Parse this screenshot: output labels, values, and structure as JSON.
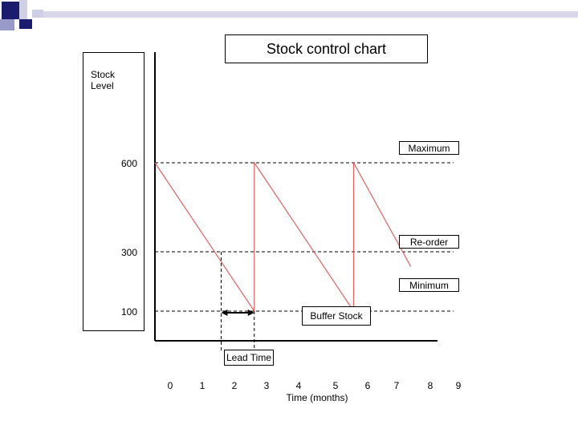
{
  "title": "Stock control chart",
  "colors": {
    "decoration": "#1c1c6e",
    "series": "#e06060",
    "axis": "#000000"
  },
  "chart_data": {
    "type": "line",
    "title": "Stock control chart",
    "xlabel": "Time (months)",
    "ylabel": "Stock Level",
    "xlim": [
      0,
      9
    ],
    "ylim": [
      0,
      600
    ],
    "x_ticks": [
      "0",
      "1",
      "2",
      "3",
      "4",
      "5",
      "6",
      "7",
      "8",
      "9"
    ],
    "y_ticks": [
      "600",
      "300",
      "100"
    ],
    "reference_lines": [
      {
        "label": "Maximum",
        "y": 600
      },
      {
        "label": "Re-order",
        "y": 300
      },
      {
        "label": "Minimum",
        "y": 100
      }
    ],
    "series": [
      {
        "x": [
          0,
          3.3,
          3.3,
          6.6,
          6.6,
          8.5
        ],
        "y": [
          600,
          100,
          600,
          100,
          600,
          250
        ]
      }
    ],
    "annotations": {
      "buffer_stock": "Buffer Stock",
      "lead_time": "Lead Time",
      "lead_time_range": [
        2.2,
        3.3
      ]
    }
  }
}
